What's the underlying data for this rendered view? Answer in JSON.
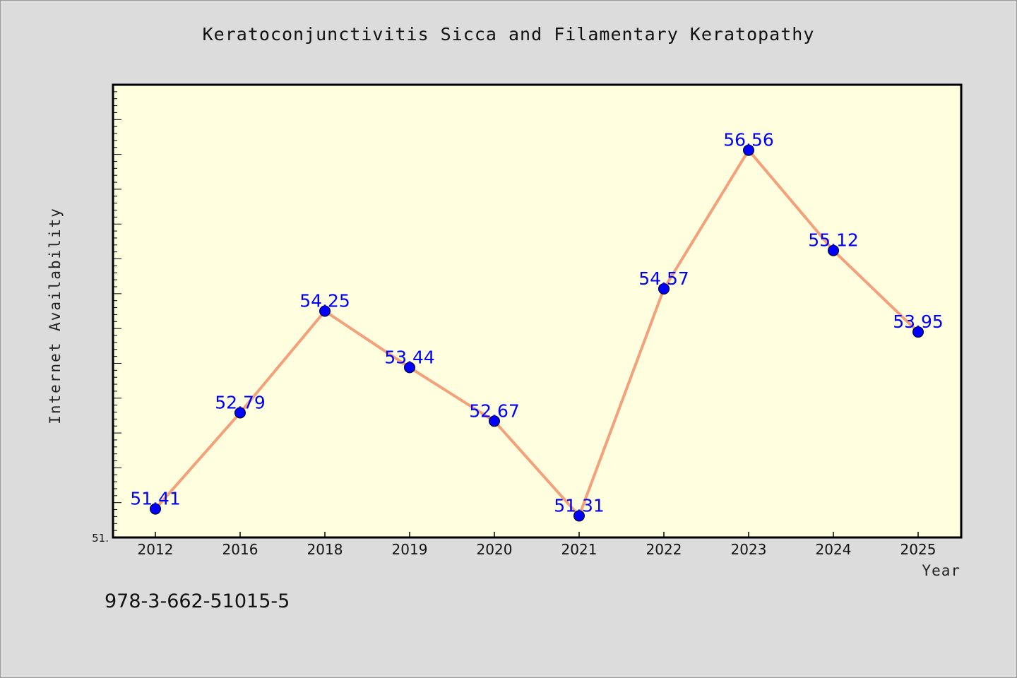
{
  "chart_data": {
    "type": "line",
    "title": "Keratoconjunctivitis Sicca and Filamentary Keratopathy",
    "xlabel": "Year",
    "ylabel": "Internet Availability",
    "categories": [
      "2012",
      "2016",
      "2018",
      "2019",
      "2020",
      "2021",
      "2022",
      "2023",
      "2024",
      "2025"
    ],
    "series": [
      {
        "values": [
          51.41,
          52.79,
          54.25,
          53.44,
          52.67,
          51.31,
          54.57,
          56.56,
          55.12,
          53.95
        ],
        "data_labels": [
          "51.41",
          "52.79",
          "54.25",
          "53.44",
          "52.67",
          "51.31",
          "54.57",
          "56.56",
          "55.12",
          "53.95"
        ],
        "line_color": "#f4a07a",
        "marker_color": "#0000ff"
      }
    ],
    "ylim": [
      51.0,
      57.5
    ],
    "y_tick_labels": [
      "51."
    ],
    "grid": false,
    "legend": "none",
    "plot_background": "#ffffe0"
  },
  "footer": {
    "code": "978-3-662-51015-5"
  }
}
